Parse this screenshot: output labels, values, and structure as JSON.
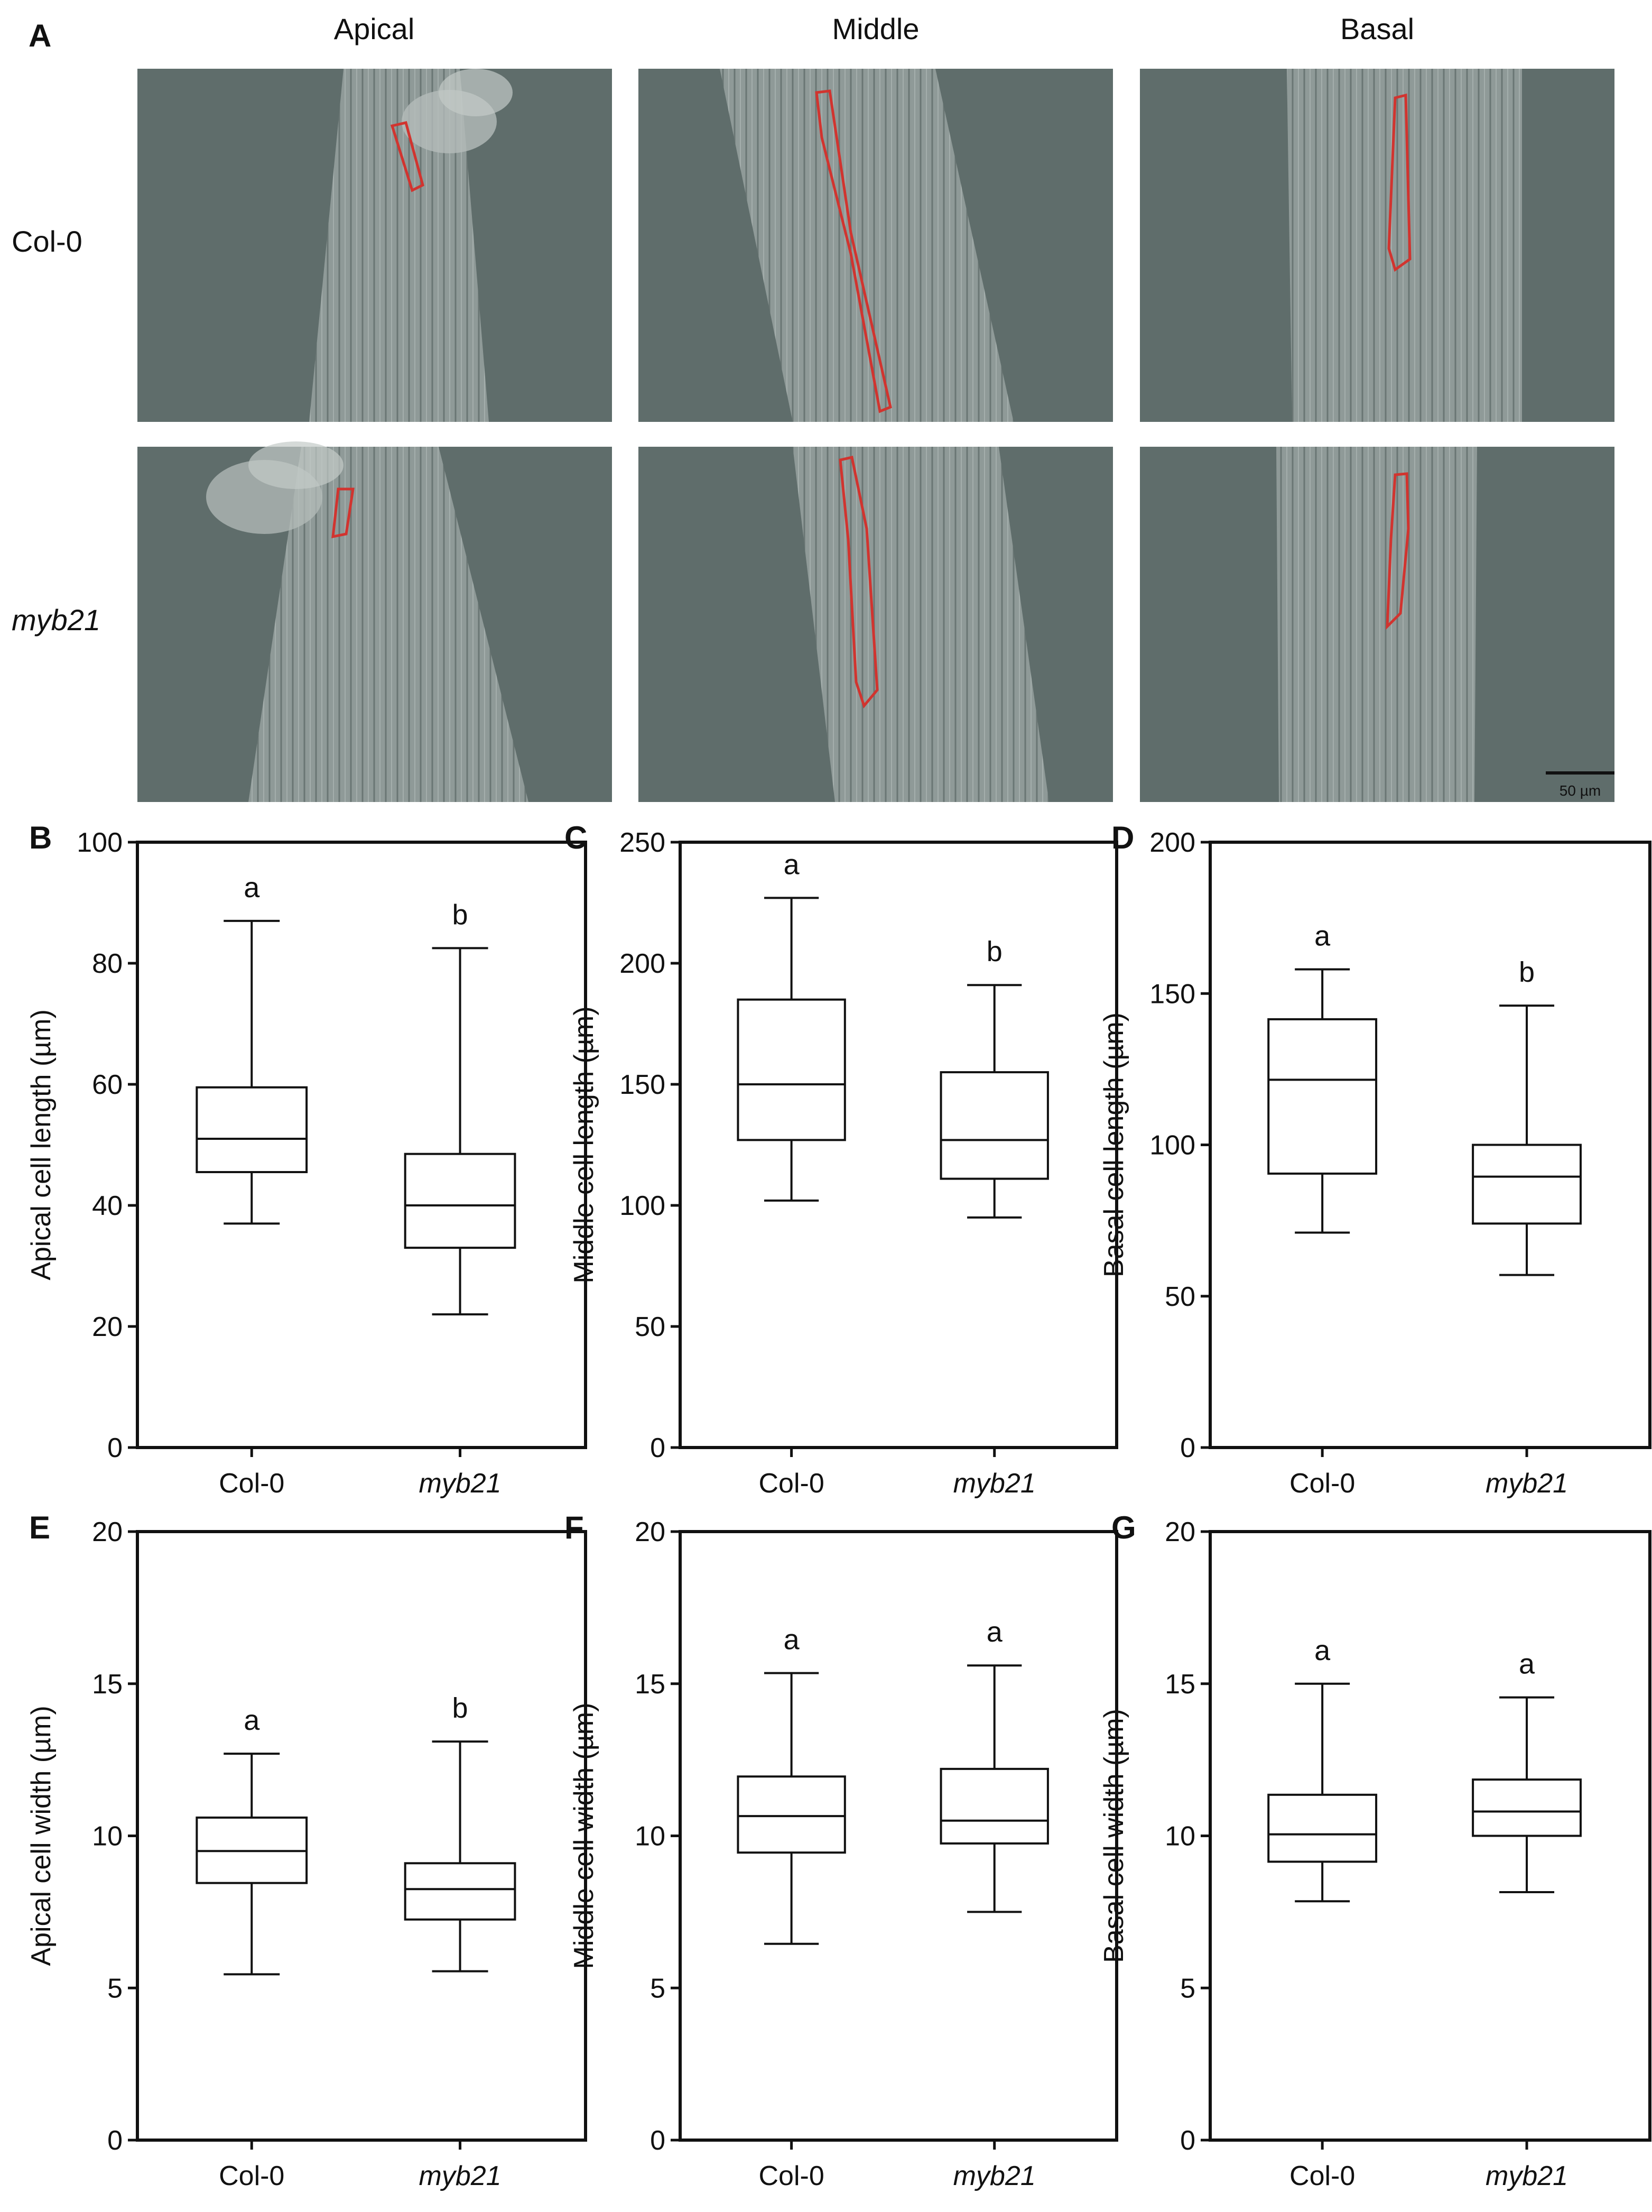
{
  "panel_A": {
    "letter": "A",
    "columns": [
      "Apical",
      "Middle",
      "Basal"
    ],
    "rows": [
      {
        "label": "Col-0",
        "italic": false
      },
      {
        "label": "myb21",
        "italic": true
      }
    ],
    "scale_bar": "50 µm",
    "image_bg": "#5f6d6b",
    "filament_color": "#8e9896",
    "outline_color": "#d1342f"
  },
  "chart_data": [
    {
      "panel": "B",
      "type": "box",
      "ylabel": "Apical cell length (µm)",
      "categories": [
        "Col-0",
        "myb21"
      ],
      "ylim": [
        0,
        100
      ],
      "ticks": [
        0,
        20,
        40,
        60,
        80,
        100
      ],
      "boxes": [
        {
          "min": 37,
          "q1": 45.5,
          "median": 51,
          "q3": 59.5,
          "max": 87,
          "sig": "a"
        },
        {
          "min": 22,
          "q1": 33,
          "median": 40,
          "q3": 48.5,
          "max": 82.5,
          "sig": "b"
        }
      ]
    },
    {
      "panel": "C",
      "type": "box",
      "ylabel": "Middle cell length (µm)",
      "categories": [
        "Col-0",
        "myb21"
      ],
      "ylim": [
        0,
        250
      ],
      "ticks": [
        0,
        50,
        100,
        150,
        200,
        250
      ],
      "boxes": [
        {
          "min": 102,
          "q1": 127,
          "median": 150,
          "q3": 185,
          "max": 227,
          "sig": "a"
        },
        {
          "min": 95,
          "q1": 111,
          "median": 127,
          "q3": 155,
          "max": 191,
          "sig": "b"
        }
      ]
    },
    {
      "panel": "D",
      "type": "box",
      "ylabel": "Basal cell length (µm)",
      "categories": [
        "Col-0",
        "myb21"
      ],
      "ylim": [
        0,
        200
      ],
      "ticks": [
        0,
        50,
        100,
        150,
        200
      ],
      "boxes": [
        {
          "min": 71,
          "q1": 90.5,
          "median": 121.5,
          "q3": 141.5,
          "max": 158,
          "sig": "a"
        },
        {
          "min": 57,
          "q1": 74,
          "median": 89.5,
          "q3": 100,
          "max": 146,
          "sig": "b"
        }
      ]
    },
    {
      "panel": "E",
      "type": "box",
      "ylabel": "Apical cell width (µm)",
      "categories": [
        "Col-0",
        "myb21"
      ],
      "ylim": [
        0,
        20
      ],
      "ticks": [
        0,
        5,
        10,
        15,
        20
      ],
      "boxes": [
        {
          "min": 5.45,
          "q1": 8.45,
          "median": 9.5,
          "q3": 10.6,
          "max": 12.7,
          "sig": "a"
        },
        {
          "min": 5.55,
          "q1": 7.25,
          "median": 8.25,
          "q3": 9.1,
          "max": 13.1,
          "sig": "b"
        }
      ]
    },
    {
      "panel": "F",
      "type": "box",
      "ylabel": "Middle cell width (µm)",
      "categories": [
        "Col-0",
        "myb21"
      ],
      "ylim": [
        0,
        20
      ],
      "ticks": [
        0,
        5,
        10,
        15,
        20
      ],
      "boxes": [
        {
          "min": 6.45,
          "q1": 9.45,
          "median": 10.65,
          "q3": 11.95,
          "max": 15.35,
          "sig": "a"
        },
        {
          "min": 7.5,
          "q1": 9.75,
          "median": 10.5,
          "q3": 12.2,
          "max": 15.6,
          "sig": "a"
        }
      ]
    },
    {
      "panel": "G",
      "type": "box",
      "ylabel": "Basal cell width (µm)",
      "categories": [
        "Col-0",
        "myb21"
      ],
      "ylim": [
        0,
        20
      ],
      "ticks": [
        0,
        5,
        10,
        15,
        20
      ],
      "boxes": [
        {
          "min": 7.85,
          "q1": 9.15,
          "median": 10.05,
          "q3": 11.35,
          "max": 15.0,
          "sig": "a"
        },
        {
          "min": 8.15,
          "q1": 10.0,
          "median": 10.8,
          "q3": 11.85,
          "max": 14.55,
          "sig": "a"
        }
      ]
    }
  ]
}
